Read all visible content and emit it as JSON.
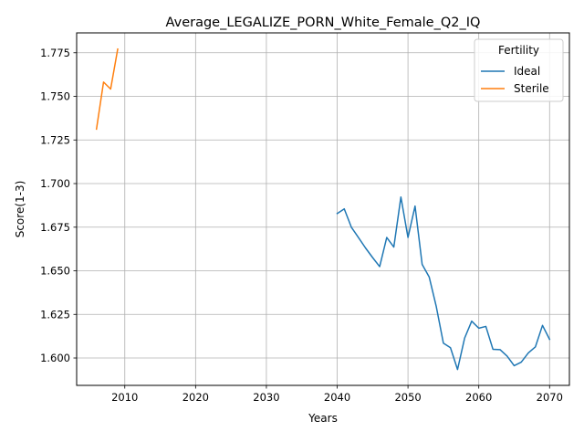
{
  "chart_data": {
    "type": "line",
    "title": "Average_LEGALIZE_PORN_White_Female_Q2_IQ",
    "xlabel": "Years",
    "ylabel": "Score(1-3)",
    "xlim": [
      2003.2,
      2072.8
    ],
    "ylim": [
      1.5843,
      1.7864
    ],
    "xticks": [
      2010,
      2020,
      2030,
      2040,
      2050,
      2060,
      2070
    ],
    "yticks": [
      1.6,
      1.625,
      1.65,
      1.675,
      1.7,
      1.725,
      1.75,
      1.775
    ],
    "ytick_format": 3,
    "grid": true,
    "legend": {
      "title": "Fertility",
      "placement": "top-right"
    },
    "series": [
      {
        "name": "Ideal",
        "color": "#1f77b4",
        "x": [
          2040,
          2041,
          2042,
          2043,
          2044,
          2045,
          2046,
          2047,
          2048,
          2049,
          2050,
          2051,
          2052,
          2053,
          2054,
          2055,
          2056,
          2057,
          2058,
          2059,
          2060,
          2061,
          2062,
          2063,
          2064,
          2065,
          2066,
          2067,
          2068,
          2069,
          2070
        ],
        "y": [
          1.6828,
          1.6855,
          1.675,
          1.6691,
          1.6631,
          1.6576,
          1.6524,
          1.6691,
          1.6636,
          1.6923,
          1.6691,
          1.6871,
          1.6537,
          1.6464,
          1.6294,
          1.6085,
          1.6059,
          1.5934,
          1.6114,
          1.6211,
          1.6171,
          1.6181,
          1.605,
          1.6048,
          1.6011,
          1.5956,
          1.5976,
          1.6029,
          1.6064,
          1.6187,
          1.6107
        ]
      },
      {
        "name": "Sterile",
        "color": "#ff7f0e",
        "x": [
          2006,
          2007,
          2008,
          2009
        ],
        "y": [
          1.7312,
          1.7582,
          1.7542,
          1.7771
        ]
      }
    ]
  }
}
